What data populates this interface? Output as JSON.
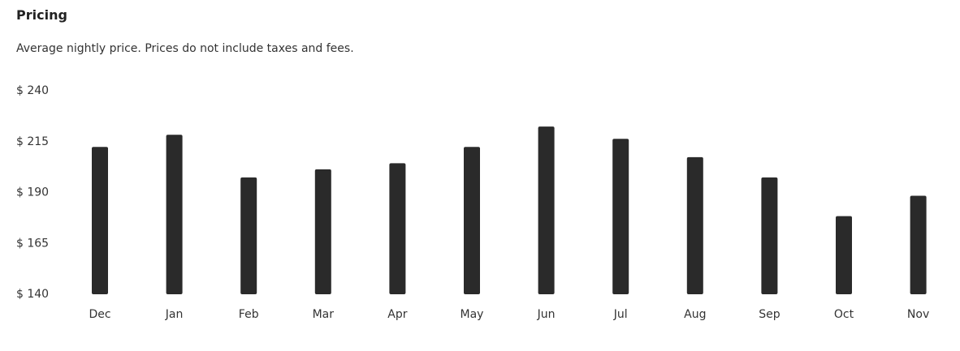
{
  "section": {
    "title": "Pricing",
    "subtitle": "Average nightly price. Prices do not include taxes and fees."
  },
  "colors": {
    "bar": "#2a2a2a",
    "text": "#333333"
  },
  "chart_data": {
    "type": "bar",
    "categories": [
      "Dec",
      "Jan",
      "Feb",
      "Mar",
      "Apr",
      "May",
      "Jun",
      "Jul",
      "Aug",
      "Sep",
      "Oct",
      "Nov"
    ],
    "values": [
      212,
      218,
      197,
      201,
      204,
      212,
      222,
      216,
      207,
      197,
      178,
      188
    ],
    "y_ticks": [
      "$ 240",
      "$ 215",
      "$ 190",
      "$ 165",
      "$ 140"
    ],
    "ylim": [
      140,
      240
    ],
    "grid": false,
    "legend": false
  }
}
